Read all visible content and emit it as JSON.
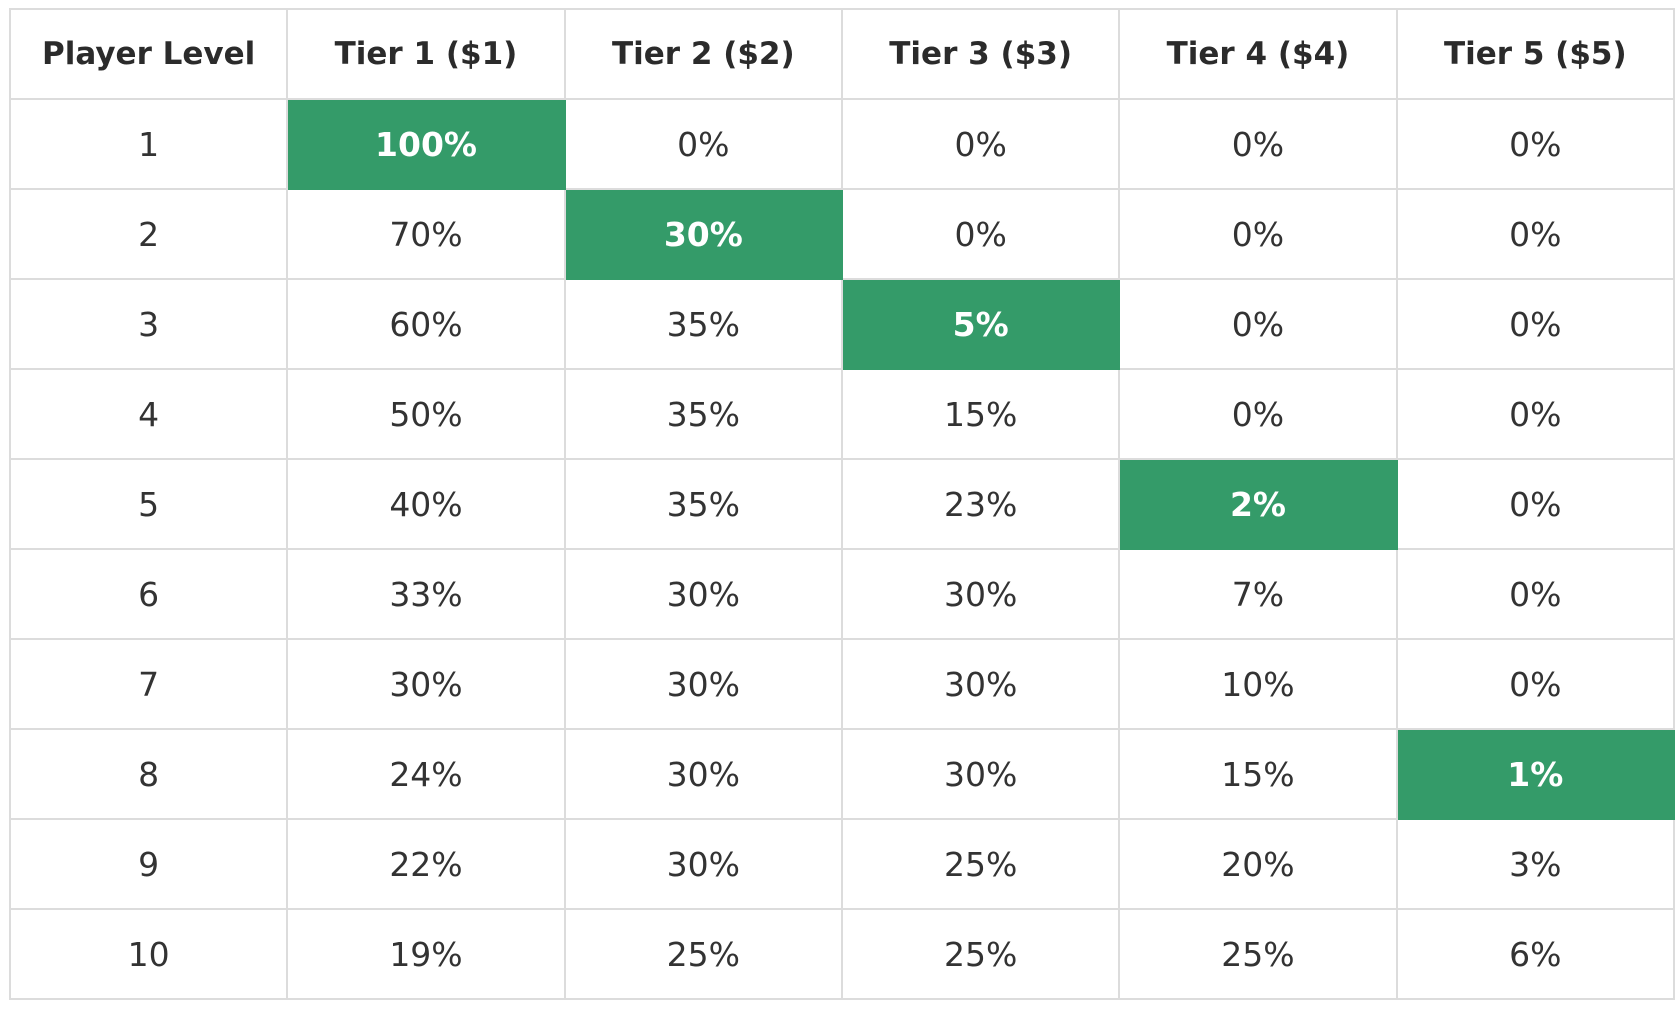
{
  "chart_data": {
    "type": "table",
    "columns": [
      "Player Level",
      "Tier 1 ($1)",
      "Tier 2 ($2)",
      "Tier 3 ($3)",
      "Tier 4 ($4)",
      "Tier 5 ($5)"
    ],
    "rows": [
      {
        "level": "1",
        "values": [
          "100%",
          "0%",
          "0%",
          "0%",
          "0%"
        ],
        "highlight": 0
      },
      {
        "level": "2",
        "values": [
          "70%",
          "30%",
          "0%",
          "0%",
          "0%"
        ],
        "highlight": 1
      },
      {
        "level": "3",
        "values": [
          "60%",
          "35%",
          "5%",
          "0%",
          "0%"
        ],
        "highlight": 2
      },
      {
        "level": "4",
        "values": [
          "50%",
          "35%",
          "15%",
          "0%",
          "0%"
        ],
        "highlight": -1
      },
      {
        "level": "5",
        "values": [
          "40%",
          "35%",
          "23%",
          "2%",
          "0%"
        ],
        "highlight": 3
      },
      {
        "level": "6",
        "values": [
          "33%",
          "30%",
          "30%",
          "7%",
          "0%"
        ],
        "highlight": -1
      },
      {
        "level": "7",
        "values": [
          "30%",
          "30%",
          "30%",
          "10%",
          "0%"
        ],
        "highlight": -1
      },
      {
        "level": "8",
        "values": [
          "24%",
          "30%",
          "30%",
          "15%",
          "1%"
        ],
        "highlight": 4
      },
      {
        "level": "9",
        "values": [
          "22%",
          "30%",
          "25%",
          "20%",
          "3%"
        ],
        "highlight": -1
      },
      {
        "level": "10",
        "values": [
          "19%",
          "25%",
          "25%",
          "25%",
          "6%"
        ],
        "highlight": -1
      }
    ],
    "highlight_color": "#349b69"
  }
}
